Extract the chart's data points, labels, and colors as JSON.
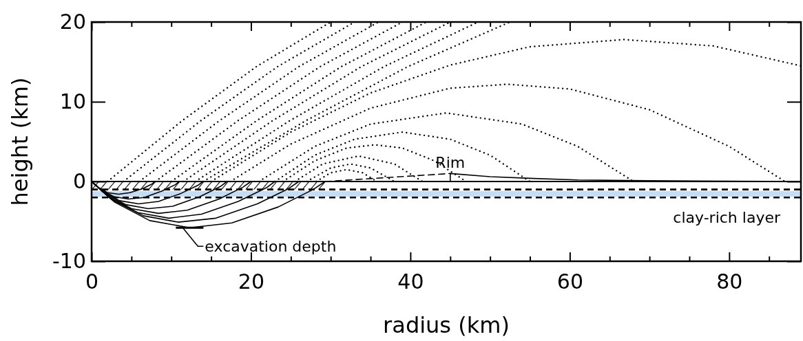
{
  "chart_data": {
    "type": "line",
    "xlabel": "radius (km)",
    "ylabel": "height (km)",
    "xlim": [
      0,
      89
    ],
    "ylim": [
      -10,
      20
    ],
    "xticks": [
      0,
      {
        "value": 5,
        "label": null
      },
      {
        "value": 10,
        "label": null
      },
      {
        "value": 15,
        "label": null
      },
      20,
      {
        "value": 25,
        "label": null
      },
      {
        "value": 30,
        "label": null
      },
      {
        "value": 35,
        "label": null
      },
      40,
      {
        "value": 45,
        "label": null
      },
      {
        "value": 50,
        "label": null
      },
      {
        "value": 55,
        "label": null
      },
      60,
      {
        "value": 65,
        "label": null
      },
      {
        "value": 70,
        "label": null
      },
      {
        "value": 75,
        "label": null
      },
      80,
      {
        "value": 85,
        "label": null
      }
    ],
    "yticks": [
      -10,
      0,
      10,
      20
    ],
    "grid": false,
    "bands": [
      {
        "axis": "y",
        "from": -1.9,
        "to": -1.2,
        "color": "#c6dcf2",
        "label": "clay-rich layer"
      }
    ],
    "ref_lines": [
      {
        "axis": "y",
        "value": 0,
        "line_style": "solid"
      },
      {
        "axis": "y",
        "value": -1,
        "line_style": "dashed"
      },
      {
        "axis": "y",
        "value": -2,
        "line_style": "dashed"
      }
    ],
    "annotations": [
      {
        "text": "Rim",
        "x": 45,
        "y": 1
      },
      {
        "text": "excavation depth",
        "x": 12.3,
        "y": -5.8
      }
    ],
    "series": [
      {
        "color": "#000000",
        "line_style": "solid",
        "x": [
          0,
          0.8,
          2,
          3.4,
          4.8,
          6.4,
          7.6,
          8
        ],
        "values": [
          0,
          -0.7,
          -1.4,
          -1.6,
          -1.4,
          -0.9,
          -0.3,
          0
        ]
      },
      {
        "color": "#000000",
        "line_style": "solid",
        "x": [
          0,
          1.1,
          2.8,
          4.6,
          6.6,
          8.8,
          10.5,
          11
        ],
        "values": [
          0,
          -1.0,
          -1.9,
          -2.2,
          -2.0,
          -1.2,
          -0.4,
          0
        ]
      },
      {
        "color": "#000000",
        "line_style": "solid",
        "x": [
          0,
          1.4,
          3.5,
          5.9,
          8.4,
          11.2,
          13.3,
          14
        ],
        "values": [
          0,
          -1.3,
          -2.4,
          -2.8,
          -2.5,
          -1.5,
          -0.5,
          0
        ]
      },
      {
        "color": "#000000",
        "line_style": "solid",
        "x": [
          0,
          1.7,
          4.3,
          7.1,
          10.2,
          13.6,
          16.2,
          17
        ],
        "values": [
          0,
          -1.5,
          -2.9,
          -3.4,
          -3.1,
          -1.9,
          -0.6,
          0
        ]
      },
      {
        "color": "#000000",
        "line_style": "solid",
        "x": [
          0,
          2,
          5,
          8.4,
          12,
          16,
          19,
          20
        ],
        "values": [
          0,
          -1.8,
          -3.4,
          -4.0,
          -3.6,
          -2.2,
          -0.7,
          0
        ]
      },
      {
        "color": "#000000",
        "line_style": "solid",
        "x": [
          0,
          2.3,
          5.8,
          9.7,
          13.8,
          18.4,
          21.9,
          23
        ],
        "values": [
          0,
          -2.1,
          -3.9,
          -4.6,
          -4.1,
          -2.5,
          -0.8,
          0
        ]
      },
      {
        "color": "#000000",
        "line_style": "solid",
        "x": [
          0,
          2.6,
          6.5,
          10.9,
          15.6,
          20.8,
          24.7,
          26
        ],
        "values": [
          0,
          -2.3,
          -4.3,
          -5.1,
          -4.6,
          -2.8,
          -0.9,
          0
        ]
      },
      {
        "color": "#000000",
        "line_style": "solid",
        "x": [
          0,
          2.9,
          7.3,
          12.3,
          17.6,
          23.4,
          27.8,
          29.3
        ],
        "values": [
          0,
          -2.6,
          -4.9,
          -5.8,
          -5.2,
          -3.2,
          -1.0,
          0
        ]
      },
      {
        "color": "#000000",
        "line_style": "dotted",
        "x": [
          2,
          11.33,
          20.67,
          30
        ],
        "values": [
          0,
          7.6,
          14.4,
          20
        ]
      },
      {
        "color": "#000000",
        "line_style": "dotted",
        "x": [
          4,
          13.67,
          23.33,
          33
        ],
        "values": [
          0,
          7.6,
          14.4,
          20
        ]
      },
      {
        "color": "#000000",
        "line_style": "dotted",
        "x": [
          6,
          16,
          26,
          36
        ],
        "values": [
          0,
          7.6,
          14.4,
          20
        ]
      },
      {
        "color": "#000000",
        "line_style": "dotted",
        "x": [
          8,
          18.33,
          28.67,
          39
        ],
        "values": [
          0,
          7.6,
          14.4,
          20
        ]
      },
      {
        "color": "#000000",
        "line_style": "dotted",
        "x": [
          10,
          20.67,
          31.33,
          42
        ],
        "values": [
          0,
          7.6,
          14.4,
          20
        ]
      },
      {
        "color": "#000000",
        "line_style": "dotted",
        "x": [
          11.5,
          22.67,
          33.83,
          45
        ],
        "values": [
          0,
          7.6,
          14.4,
          20
        ]
      },
      {
        "color": "#000000",
        "line_style": "dotted",
        "x": [
          13,
          24.83,
          36.67,
          48.5
        ],
        "values": [
          0,
          7.6,
          14.4,
          20
        ]
      },
      {
        "color": "#000000",
        "line_style": "dotted",
        "x": [
          14,
          26.83,
          39.67,
          52.5
        ],
        "values": [
          0,
          7.6,
          14.4,
          20
        ]
      },
      {
        "color": "#000000",
        "line_style": "dotted",
        "x": [
          15,
          25,
          35,
          45,
          55,
          66.8,
          78,
          89
        ],
        "values": [
          0,
          6.2,
          11.1,
          14.6,
          16.9,
          17.8,
          17.0,
          14.5
        ]
      },
      {
        "color": "#000000",
        "line_style": "dotted",
        "x": [
          17.4,
          25,
          35,
          45,
          52.2,
          60,
          70,
          80,
          87
        ],
        "values": [
          0,
          4.7,
          9.2,
          11.7,
          12.2,
          11.6,
          9.0,
          4.4,
          0
        ]
      },
      {
        "color": "#000000",
        "line_style": "dotted",
        "x": [
          21,
          28,
          35,
          44.5,
          54,
          61,
          68
        ],
        "values": [
          0,
          4.4,
          7.2,
          8.6,
          7.2,
          4.4,
          0
        ]
      },
      {
        "color": "#000000",
        "line_style": "dotted",
        "x": [
          23,
          28,
          33,
          39,
          45,
          50,
          55
        ],
        "values": [
          0,
          3.3,
          5.3,
          6.2,
          5.3,
          3.3,
          0
        ]
      },
      {
        "color": "#000000",
        "line_style": "dotted",
        "x": [
          24,
          28,
          32,
          35.5,
          39,
          43,
          47
        ],
        "values": [
          0,
          2.6,
          4.2,
          4.6,
          4.2,
          2.6,
          0
        ]
      },
      {
        "color": "#000000",
        "line_style": "dotted",
        "x": [
          25.5,
          29,
          33.5,
          38,
          41.5
        ],
        "values": [
          0,
          2.2,
          3.2,
          2.2,
          0
        ]
      },
      {
        "color": "#000000",
        "line_style": "dotted",
        "x": [
          27,
          30,
          32.5,
          35,
          38
        ],
        "values": [
          0,
          1.7,
          2.2,
          1.7,
          0
        ]
      },
      {
        "color": "#000000",
        "line_style": "dotted",
        "x": [
          28.2,
          30,
          32,
          34,
          35.8
        ],
        "values": [
          0,
          1.1,
          1.5,
          1.1,
          0
        ]
      },
      {
        "color": "#000000",
        "line_style": "dashed",
        "x": [
          29.3,
          45
        ],
        "values": [
          0,
          1
        ]
      },
      {
        "color": "#000000",
        "line_style": "solid",
        "x": [
          45,
          45,
          50,
          55,
          61,
          70,
          89
        ],
        "values": [
          0,
          1,
          0.6,
          0.4,
          0.2,
          0.1,
          0
        ]
      }
    ]
  }
}
